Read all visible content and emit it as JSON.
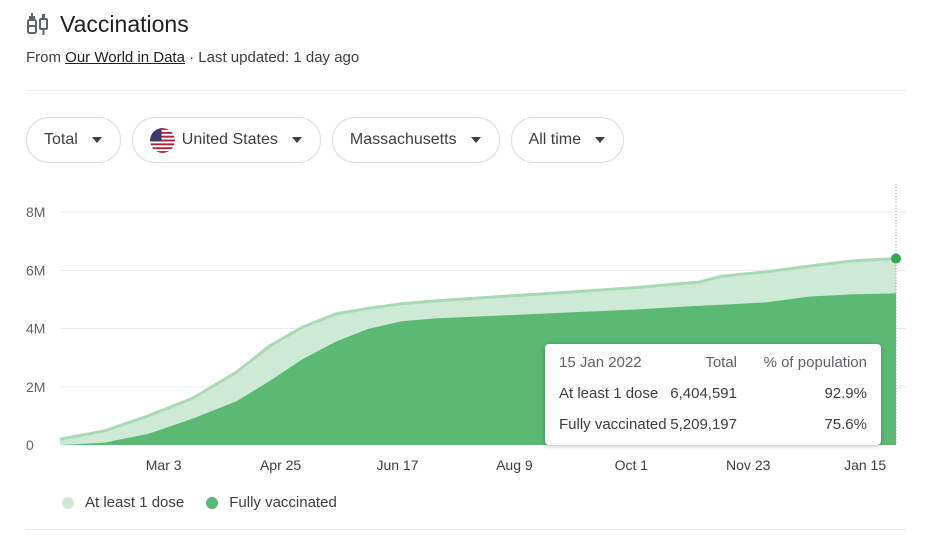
{
  "header": {
    "title": "Vaccinations",
    "icon": "syringe-icon",
    "source_prefix": "From ",
    "source_link": "Our World in Data",
    "source_suffix": " · Last updated: 1 day ago"
  },
  "filters": [
    {
      "label": "Total"
    },
    {
      "label": "United States",
      "icon": "us-flag-icon"
    },
    {
      "label": "Massachusetts"
    },
    {
      "label": "All time"
    }
  ],
  "colors": {
    "at_least_one": "#cfe9d7",
    "at_least_one_edge": "#a9d9b5",
    "fully": "#5bb974",
    "marker": "#34a853"
  },
  "tooltip": {
    "date": "15 Jan 2022",
    "col_total": "Total",
    "col_pct": "% of population",
    "rows": [
      {
        "label": "At least 1 dose",
        "total": "6,404,591",
        "pct": "92.9%"
      },
      {
        "label": "Fully vaccinated",
        "total": "5,209,197",
        "pct": "75.6%"
      }
    ]
  },
  "legend": [
    {
      "label": "At least 1 dose"
    },
    {
      "label": "Fully vaccinated"
    }
  ],
  "chart_data": {
    "type": "area",
    "ylim": [
      0,
      9000000
    ],
    "y_tick_values": [
      0,
      2000000,
      4000000,
      6000000,
      8000000
    ],
    "y_tick_labels": [
      "0",
      "2M",
      "4M",
      "6M",
      "8M"
    ],
    "x_tick_labels": [
      "Mar 3",
      "Apr 25",
      "Jun 17",
      "Aug 9",
      "Oct 1",
      "Nov 23",
      "Jan 15"
    ],
    "x_tick_days": [
      47,
      100,
      153,
      206,
      259,
      312,
      365
    ],
    "x_range_days": [
      0,
      379
    ],
    "grid": true,
    "legend_position": "bottom-left",
    "series": [
      {
        "name": "At least 1 dose",
        "points": [
          [
            0,
            200000
          ],
          [
            20,
            480000
          ],
          [
            40,
            1000000
          ],
          [
            60,
            1600000
          ],
          [
            80,
            2500000
          ],
          [
            95,
            3400000
          ],
          [
            110,
            4050000
          ],
          [
            125,
            4500000
          ],
          [
            140,
            4700000
          ],
          [
            155,
            4850000
          ],
          [
            170,
            4950000
          ],
          [
            200,
            5100000
          ],
          [
            230,
            5250000
          ],
          [
            260,
            5400000
          ],
          [
            290,
            5600000
          ],
          [
            300,
            5800000
          ],
          [
            320,
            5950000
          ],
          [
            340,
            6150000
          ],
          [
            360,
            6330000
          ],
          [
            379,
            6404591
          ]
        ]
      },
      {
        "name": "Fully vaccinated",
        "points": [
          [
            0,
            0
          ],
          [
            20,
            80000
          ],
          [
            40,
            380000
          ],
          [
            60,
            900000
          ],
          [
            80,
            1500000
          ],
          [
            95,
            2200000
          ],
          [
            110,
            2950000
          ],
          [
            125,
            3550000
          ],
          [
            140,
            4000000
          ],
          [
            155,
            4250000
          ],
          [
            170,
            4350000
          ],
          [
            200,
            4450000
          ],
          [
            230,
            4550000
          ],
          [
            260,
            4650000
          ],
          [
            290,
            4780000
          ],
          [
            300,
            4820000
          ],
          [
            320,
            4900000
          ],
          [
            340,
            5100000
          ],
          [
            360,
            5180000
          ],
          [
            379,
            5209197
          ]
        ]
      }
    ]
  }
}
